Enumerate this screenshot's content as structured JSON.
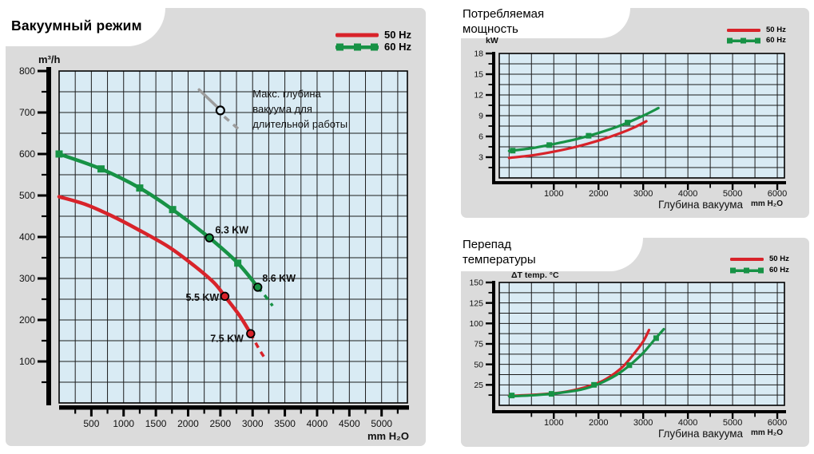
{
  "colors": {
    "red": "#d8232a",
    "green": "#179245",
    "chart_bg": "#d9ebf4",
    "panel_bg": "#dbdbdb",
    "grid": "#1c1c1c",
    "gray_annotation": "#9c9c9c"
  },
  "panels": {
    "vacuum": {
      "title": "Вакуумный режим"
    },
    "power": {
      "title_lines": [
        "Потребляемая",
        "мощность"
      ]
    },
    "temp": {
      "title_lines": [
        "Перепад",
        "температуры"
      ]
    }
  },
  "chart_data": [
    {
      "id": "vacuum-flow",
      "type": "line",
      "title": "Вакуумный режим",
      "ylabel": "m³/h",
      "x_unit": "mm H₂O",
      "xlim": [
        0,
        5400
      ],
      "ylim": [
        0,
        800
      ],
      "grid": {
        "x_step": 250,
        "y_step": 50,
        "on": true
      },
      "x_major_ticks": [
        500,
        1000,
        1500,
        2000,
        2500,
        3000,
        3500,
        4000,
        4500,
        5000
      ],
      "x_minor_step": 250,
      "y_major_ticks": [
        100,
        200,
        300,
        400,
        500,
        600,
        700,
        800
      ],
      "y_minor_step": 50,
      "legend": [
        {
          "label": "50 Hz"
        },
        {
          "label": "60 Hz"
        }
      ],
      "series": [
        {
          "name": "50 Hz",
          "color": "red",
          "solid": [
            [
              0,
              497
            ],
            [
              400,
              479
            ],
            [
              800,
              452
            ],
            [
              1200,
              420
            ],
            [
              1700,
              376
            ],
            [
              2100,
              330
            ],
            [
              2400,
              290
            ],
            [
              2570,
              257
            ],
            [
              2800,
              210
            ],
            [
              2970,
              167
            ]
          ],
          "dashed": [
            [
              2970,
              167
            ],
            [
              3100,
              130
            ],
            [
              3190,
              108
            ]
          ],
          "markers": [
            {
              "shape": "circle",
              "x": 2570,
              "y": 257
            },
            {
              "shape": "circle",
              "x": 2970,
              "y": 167
            }
          ]
        },
        {
          "name": "60 Hz",
          "color": "green",
          "solid": [
            [
              0,
              600
            ],
            [
              650,
              564
            ],
            [
              1250,
              518
            ],
            [
              1760,
              466
            ],
            [
              2330,
              398
            ],
            [
              2770,
              337
            ],
            [
              3080,
              279
            ]
          ],
          "dashed": [
            [
              3080,
              279
            ],
            [
              3210,
              255
            ],
            [
              3310,
              234
            ]
          ],
          "markers": [
            {
              "shape": "square",
              "x": 0,
              "y": 600
            },
            {
              "shape": "square",
              "x": 650,
              "y": 564
            },
            {
              "shape": "square",
              "x": 1250,
              "y": 518
            },
            {
              "shape": "square",
              "x": 1760,
              "y": 466
            },
            {
              "shape": "circle",
              "x": 2330,
              "y": 398
            },
            {
              "shape": "square",
              "x": 2770,
              "y": 337
            },
            {
              "shape": "circle",
              "x": 3080,
              "y": 279
            }
          ]
        }
      ],
      "point_labels": [
        {
          "text": "6.3 KW",
          "x": 2420,
          "y": 409,
          "anchor": "start"
        },
        {
          "text": "8.6 KW",
          "x": 3150,
          "y": 292,
          "anchor": "start"
        },
        {
          "text": "5.5 KW",
          "x": 2480,
          "y": 246,
          "anchor": "end"
        },
        {
          "text": "7.5 KW",
          "x": 2860,
          "y": 147,
          "anchor": "end"
        }
      ],
      "annotation": {
        "text_lines": [
          "Макс. глубина",
          "вакуума для",
          "длительной работы"
        ],
        "text_x": 3000,
        "text_y": 737,
        "line_height_units": 37,
        "solid_line": [
          [
            2170,
            755
          ],
          [
            2500,
            706
          ]
        ],
        "circle": [
          2500,
          705
        ],
        "dashed_line": [
          [
            2560,
            690
          ],
          [
            2840,
            652
          ]
        ]
      }
    },
    {
      "id": "power-consumption",
      "type": "line",
      "title": "Потребляемая мощность",
      "ylabel": "kW",
      "xlabel": "Глубина вакуума",
      "x_unit": "mm H₂O",
      "xlim": [
        -220,
        6160
      ],
      "ylim": [
        0,
        18
      ],
      "grid": {
        "x_step": 500,
        "y_step": 1.5,
        "on": true
      },
      "x_major_ticks": [
        1000,
        2000,
        3000,
        4000,
        5000,
        6000
      ],
      "x_minor_step": 500,
      "y_major_ticks": [
        3,
        6,
        9,
        12,
        15,
        18
      ],
      "y_minor_step": 1.5,
      "legend": [
        {
          "label": "50 Hz"
        },
        {
          "label": "60 Hz"
        }
      ],
      "series": [
        {
          "name": "50 Hz",
          "color": "red",
          "solid": [
            [
              0,
              2.9
            ],
            [
              500,
              3.25
            ],
            [
              1000,
              3.8
            ],
            [
              1500,
              4.5
            ],
            [
              2000,
              5.4
            ],
            [
              2500,
              6.5
            ],
            [
              2800,
              7.3
            ],
            [
              3070,
              8.2
            ]
          ],
          "dashed": [],
          "markers": []
        },
        {
          "name": "60 Hz",
          "color": "green",
          "solid": [
            [
              0,
              3.9
            ],
            [
              500,
              4.3
            ],
            [
              1000,
              4.9
            ],
            [
              1500,
              5.6
            ],
            [
              2000,
              6.5
            ],
            [
              2500,
              7.6
            ],
            [
              3000,
              9.0
            ],
            [
              3340,
              10.1
            ]
          ],
          "dashed": [],
          "markers": [
            {
              "shape": "square",
              "x": 80,
              "y": 3.95
            },
            {
              "shape": "square",
              "x": 900,
              "y": 4.75
            },
            {
              "shape": "square",
              "x": 1780,
              "y": 6.1
            },
            {
              "shape": "square",
              "x": 2650,
              "y": 8.0
            }
          ]
        }
      ]
    },
    {
      "id": "temperature-differential",
      "type": "line",
      "title": "Перепад температуры",
      "ylabel": "ΔT  temp. °C",
      "xlabel": "Глубина вакуума",
      "x_unit": "mm H₂O",
      "xlim": [
        -220,
        6160
      ],
      "ylim": [
        0,
        150
      ],
      "grid": {
        "x_step": 500,
        "y_step": 12.5,
        "on": true
      },
      "x_major_ticks": [
        1000,
        2000,
        3000,
        4000,
        5000,
        6000
      ],
      "x_minor_step": 500,
      "y_major_ticks": [
        25,
        50,
        75,
        100,
        125,
        150
      ],
      "y_minor_step": 12.5,
      "legend": [
        {
          "label": "50 Hz"
        },
        {
          "label": "60 Hz"
        }
      ],
      "series": [
        {
          "name": "50 Hz",
          "color": "red",
          "solid": [
            [
              0,
              11.5
            ],
            [
              600,
              13
            ],
            [
              1200,
              16
            ],
            [
              1700,
              22
            ],
            [
              2100,
              30
            ],
            [
              2500,
              45
            ],
            [
              2750,
              60
            ],
            [
              3000,
              78
            ],
            [
              3130,
              92
            ]
          ],
          "dashed": [],
          "markers": []
        },
        {
          "name": "60 Hz",
          "color": "green",
          "solid": [
            [
              0,
              11
            ],
            [
              600,
              12.5
            ],
            [
              1100,
              15
            ],
            [
              1600,
              19
            ],
            [
              2000,
              26
            ],
            [
              2400,
              37
            ],
            [
              2700,
              49
            ],
            [
              3000,
              64
            ],
            [
              3250,
              80
            ],
            [
              3460,
              93
            ]
          ],
          "dashed": [],
          "markers": [
            {
              "shape": "square",
              "x": 60,
              "y": 12
            },
            {
              "shape": "square",
              "x": 950,
              "y": 14
            },
            {
              "shape": "square",
              "x": 1900,
              "y": 25
            },
            {
              "shape": "square",
              "x": 2690,
              "y": 49
            },
            {
              "shape": "square",
              "x": 3290,
              "y": 82
            }
          ]
        }
      ]
    }
  ]
}
